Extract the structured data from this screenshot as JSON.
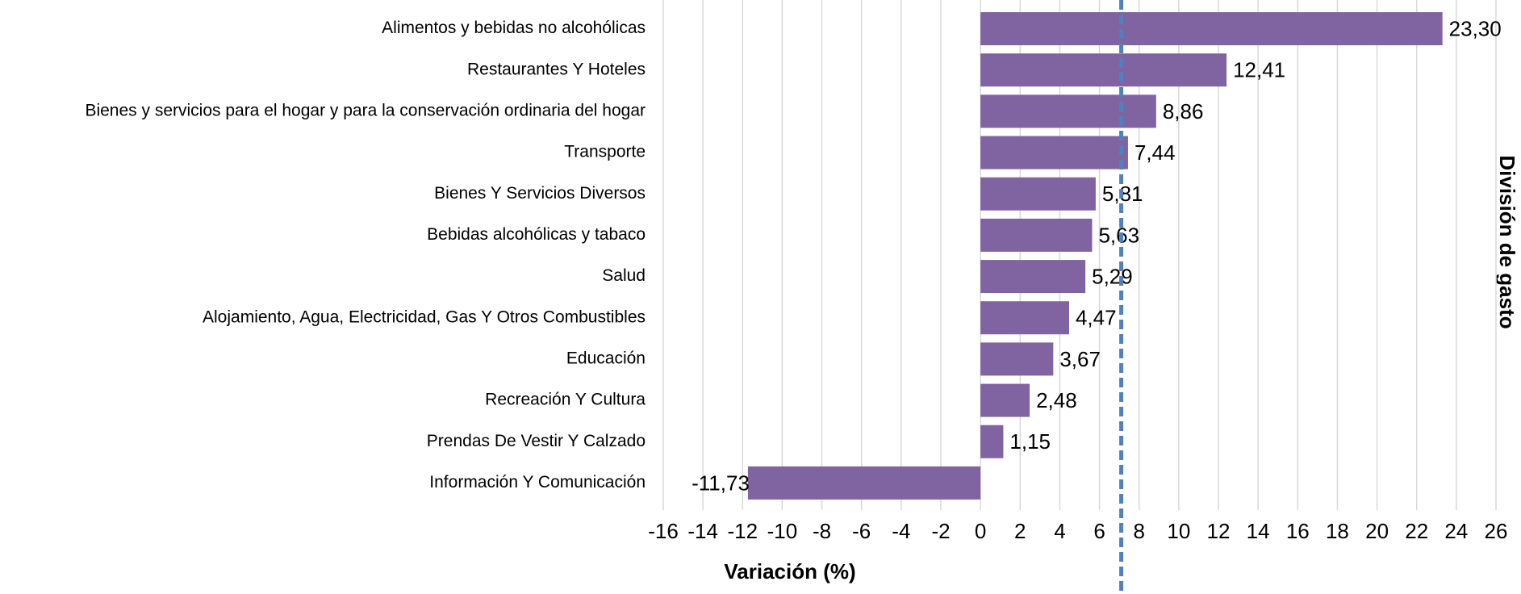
{
  "chart_data": {
    "type": "hbar",
    "x_axis_label": "Variación (%)",
    "y_axis_label": "División de gasto",
    "categories": [
      "Alimentos y bebidas no alcohólicas",
      "Restaurantes Y Hoteles",
      "Bienes y servicios para el hogar y para la conservación ordinaria del hogar",
      "Transporte",
      "Bienes Y Servicios Diversos",
      "Bebidas alcohólicas y tabaco",
      "Salud",
      "Alojamiento, Agua, Electricidad, Gas Y Otros Combustibles",
      "Educación",
      "Recreación Y Cultura",
      "Prendas De Vestir Y Calzado",
      "Información Y Comunicación"
    ],
    "values": [
      23.3,
      12.41,
      8.86,
      7.44,
      5.81,
      5.63,
      5.29,
      4.47,
      3.67,
      2.48,
      1.15,
      -11.73
    ],
    "value_labels": [
      "23,30",
      "12,41",
      "8,86",
      "7,44",
      "5,81",
      "5,63",
      "5,29",
      "4,47",
      "3,67",
      "2,48",
      "1,15",
      "-11,73"
    ],
    "color": "#8064a2",
    "xlim": [
      -16,
      26
    ],
    "xticks": [
      -16,
      -14,
      -12,
      -10,
      -8,
      -6,
      -4,
      -2,
      0,
      2,
      4,
      6,
      8,
      10,
      12,
      14,
      16,
      18,
      20,
      22,
      24,
      26
    ],
    "grid": true,
    "reference_line": {
      "value": 7.1,
      "color": "#4f81bd"
    }
  }
}
